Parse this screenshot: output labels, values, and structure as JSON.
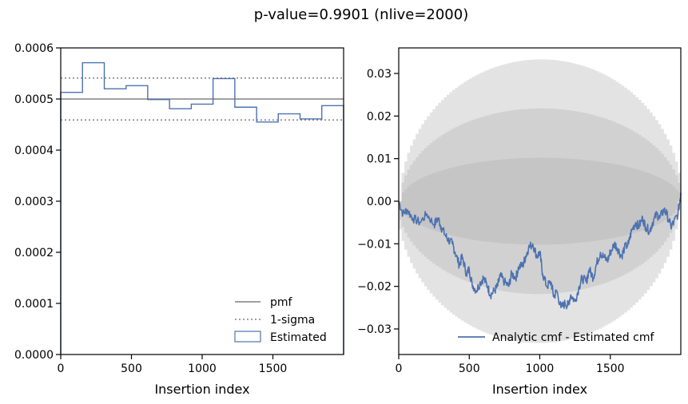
{
  "title": "p-value=0.9901 (nlive=2000)",
  "colors": {
    "blue": "#4c72b0",
    "gray": "#808080",
    "band": "#b0b0b0"
  },
  "chart_data": [
    {
      "type": "line",
      "panel": "left",
      "xlabel": "Insertion index",
      "ylabel": "",
      "xlim": [
        0,
        2000
      ],
      "ylim": [
        0,
        0.0006
      ],
      "xticks": [
        0,
        500,
        1000,
        1500
      ],
      "xtick_labels": [
        "0",
        "500",
        "1000",
        "1500"
      ],
      "yticks": [
        0,
        0.0001,
        0.0002,
        0.0003,
        0.0004,
        0.0005,
        0.0006
      ],
      "ytick_labels": [
        "0.0000",
        "0.0001",
        "0.0002",
        "0.0003",
        "0.0004",
        "0.0005",
        "0.0006"
      ],
      "pmf": 0.0005,
      "sigma_upper": 0.000541,
      "sigma_lower": 0.000459,
      "hist_edges": [
        0,
        154,
        308,
        462,
        615,
        769,
        923,
        1077,
        1231,
        1385,
        1538,
        1692,
        1846,
        2000
      ],
      "hist_values": [
        0.000513,
        0.000571,
        0.00052,
        0.000526,
        0.000499,
        0.000481,
        0.00049,
        0.00054,
        0.000484,
        0.000455,
        0.000471,
        0.000461,
        0.000487
      ],
      "legend": {
        "placement": "lower-right",
        "entries": [
          "pmf",
          "1-sigma",
          "Estimated"
        ]
      }
    },
    {
      "type": "line",
      "panel": "right",
      "xlabel": "Insertion index",
      "ylabel": "",
      "xlim": [
        0,
        2000
      ],
      "ylim": [
        -0.036,
        0.036
      ],
      "xticks": [
        0,
        500,
        1000,
        1500
      ],
      "xtick_labels": [
        "0",
        "500",
        "1000",
        "1500"
      ],
      "yticks": [
        -0.03,
        -0.02,
        -0.01,
        0.0,
        0.01,
        0.02,
        0.03
      ],
      "ytick_labels": [
        "−0.03",
        "−0.02",
        "−0.01",
        "0.00",
        "0.01",
        "0.02",
        "0.03"
      ],
      "bands": [
        {
          "name": "1-sigma",
          "max_half_width": 0.0102
        },
        {
          "name": "2-sigma",
          "max_half_width": 0.0218
        },
        {
          "name": "3-sigma",
          "max_half_width": 0.0333
        }
      ],
      "series": [
        {
          "name": "Analytic cmf - Estimated cmf",
          "x": [
            0,
            30,
            60,
            100,
            150,
            200,
            250,
            280,
            300,
            330,
            350,
            380,
            400,
            430,
            450,
            480,
            500,
            520,
            550,
            580,
            600,
            630,
            650,
            680,
            700,
            720,
            750,
            780,
            800,
            830,
            850,
            880,
            900,
            920,
            950,
            980,
            1000,
            1020,
            1050,
            1080,
            1100,
            1120,
            1150,
            1180,
            1200,
            1220,
            1250,
            1280,
            1300,
            1330,
            1350,
            1380,
            1400,
            1430,
            1450,
            1480,
            1500,
            1530,
            1550,
            1580,
            1600,
            1630,
            1650,
            1680,
            1700,
            1730,
            1750,
            1780,
            1800,
            1830,
            1850,
            1880,
            1900,
            1930,
            1950,
            1980,
            2000
          ],
          "values": [
            0.0,
            -0.003,
            -0.002,
            -0.004,
            -0.005,
            -0.003,
            -0.0055,
            -0.004,
            -0.006,
            -0.008,
            -0.009,
            -0.01,
            -0.012,
            -0.015,
            -0.013,
            -0.017,
            -0.016,
            -0.0195,
            -0.021,
            -0.019,
            -0.018,
            -0.02,
            -0.022,
            -0.021,
            -0.02,
            -0.0175,
            -0.019,
            -0.02,
            -0.017,
            -0.018,
            -0.0155,
            -0.015,
            -0.013,
            -0.011,
            -0.01,
            -0.013,
            -0.012,
            -0.017,
            -0.02,
            -0.019,
            -0.0225,
            -0.021,
            -0.025,
            -0.024,
            -0.0245,
            -0.022,
            -0.0235,
            -0.02,
            -0.018,
            -0.019,
            -0.016,
            -0.018,
            -0.015,
            -0.012,
            -0.013,
            -0.014,
            -0.012,
            -0.01,
            -0.011,
            -0.013,
            -0.011,
            -0.01,
            -0.007,
            -0.005,
            -0.006,
            -0.004,
            -0.006,
            -0.007,
            -0.005,
            -0.003,
            -0.004,
            -0.002,
            -0.003,
            -0.006,
            -0.005,
            -0.003,
            0.002
          ]
        }
      ],
      "legend": {
        "placement": "lower-right",
        "entries": [
          "Analytic cmf - Estimated cmf"
        ]
      }
    }
  ]
}
